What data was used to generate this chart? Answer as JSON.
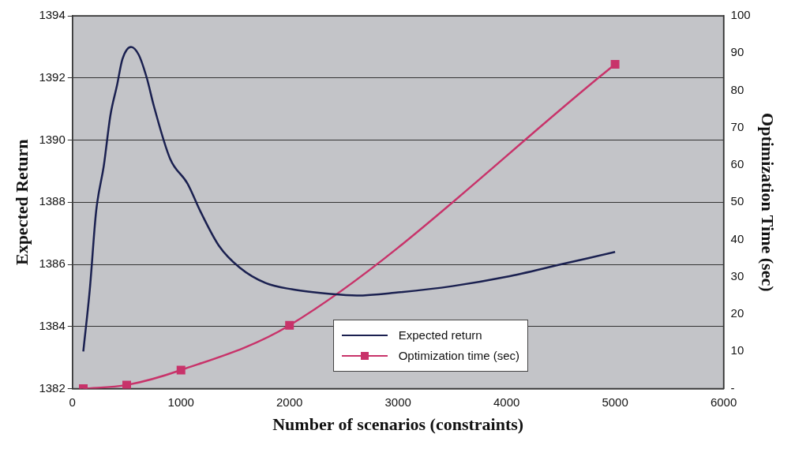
{
  "chart_data": {
    "type": "line",
    "xlabel": "Number of scenarios (constraints)",
    "ylabel": "Expected Return",
    "y2label": "Optimization Time (sec)",
    "xlim": [
      0,
      6000
    ],
    "xticks": [
      0,
      1000,
      2000,
      3000,
      4000,
      5000,
      6000
    ],
    "ylim": [
      1382,
      1394
    ],
    "yticks": [
      1382,
      1384,
      1386,
      1388,
      1390,
      1392,
      1394
    ],
    "y2lim": [
      0,
      100
    ],
    "y2ticks": [
      {
        "value": 0,
        "label": "-"
      },
      10,
      20,
      30,
      40,
      50,
      60,
      70,
      80,
      90,
      100
    ],
    "grid": "y",
    "legend": "bottom",
    "line_style": "solid",
    "series": [
      {
        "name": "Expected return",
        "color": "#1a2050",
        "marker": "none",
        "x": [
          100,
          160,
          218,
          290,
          350,
          410,
          460,
          540,
          610,
          685,
          750,
          900,
          1060,
          1180,
          1350,
          1540,
          1780,
          2020,
          2380,
          2620,
          3000,
          3500,
          4000,
          4500,
          5000
        ],
        "values": [
          1383.2,
          1385.2,
          1387.7,
          1389.2,
          1390.8,
          1391.75,
          1392.6,
          1393.0,
          1392.75,
          1392.0,
          1391.1,
          1389.4,
          1388.6,
          1387.7,
          1386.6,
          1385.9,
          1385.4,
          1385.2,
          1385.05,
          1385.0,
          1385.1,
          1385.3,
          1385.6,
          1386.0,
          1386.4
        ]
      },
      {
        "name": "Optimization time (sec)",
        "color": "#c8336a",
        "marker": "square",
        "axis": "y2",
        "x": [
          100,
          500,
          1000,
          2000,
          5000
        ],
        "values": [
          0,
          1,
          5,
          17,
          87
        ]
      }
    ]
  }
}
